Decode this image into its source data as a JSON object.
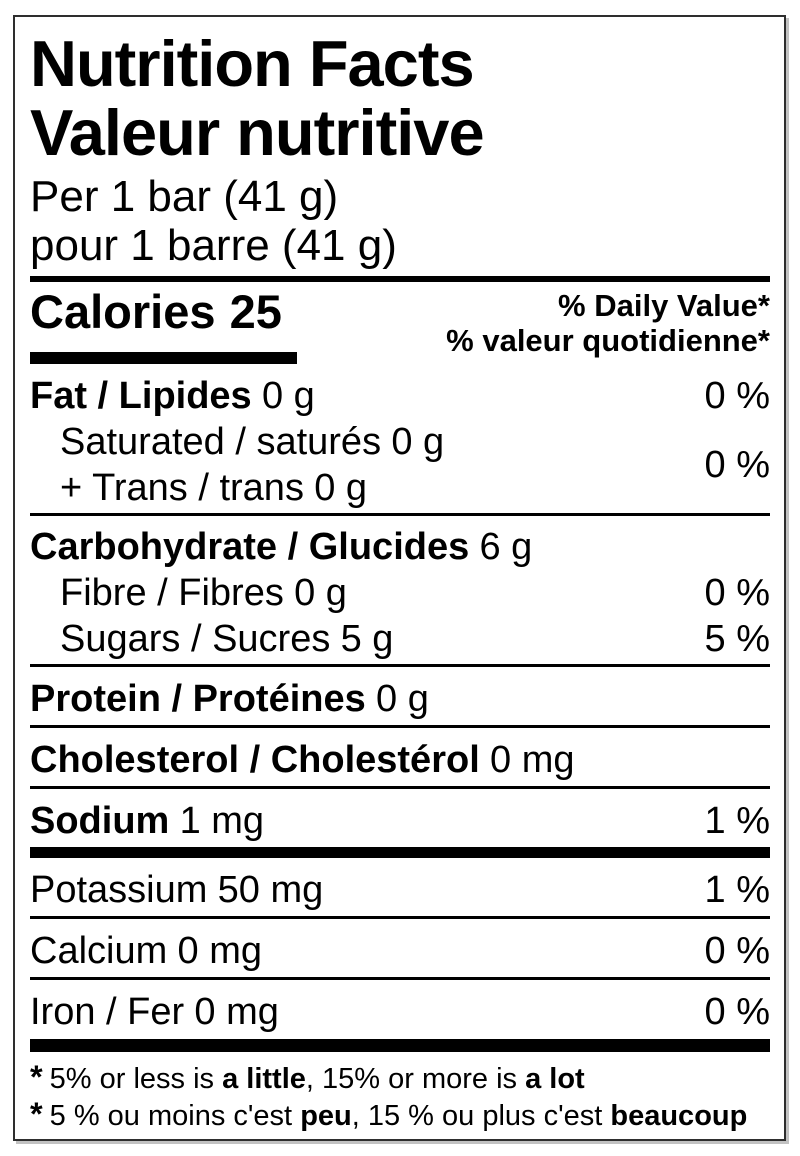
{
  "label": {
    "title_en": "Nutrition Facts",
    "title_fr": "Valeur nutritive",
    "serving_en": "Per 1 bar (41 g)",
    "serving_fr": "pour 1 barre (41 g)",
    "calories_label": "Calories",
    "calories_value": "25",
    "daily_value_header_en": "% Daily Value*",
    "daily_value_header_fr": "% valeur quotidienne*",
    "rows": [
      {
        "id": "fat",
        "label": "Fat / Lipides",
        "amount": "0 g",
        "dv": "0 %"
      },
      {
        "id": "saturated-trans",
        "dv": "0 %",
        "lines": [
          {
            "label": "Saturated / saturés",
            "amount": "0 g"
          },
          {
            "label": "+ Trans / trans",
            "amount": "0 g"
          }
        ]
      },
      {
        "id": "carbohydrate",
        "label": "Carbohydrate / Glucides",
        "amount": "6 g"
      },
      {
        "id": "fibre",
        "label": "Fibre / Fibres",
        "amount": "0 g",
        "dv": "0 %"
      },
      {
        "id": "sugars",
        "label": "Sugars / Sucres",
        "amount": "5 g",
        "dv": "5 %"
      },
      {
        "id": "protein",
        "label": "Protein / Protéines",
        "amount": "0 g"
      },
      {
        "id": "cholesterol",
        "label": "Cholesterol / Cholestérol",
        "amount": "0 mg"
      },
      {
        "id": "sodium",
        "label": "Sodium",
        "amount": "1 mg",
        "dv": "1 %"
      },
      {
        "id": "potassium",
        "label": "Potassium",
        "amount": "50 mg",
        "dv": "1 %"
      },
      {
        "id": "calcium",
        "label": "Calcium",
        "amount": "0 mg",
        "dv": "0 %"
      },
      {
        "id": "iron",
        "label": "Iron / Fer",
        "amount": "0 mg",
        "dv": "0 %"
      }
    ],
    "footnotes": {
      "en": {
        "star": "*",
        "segments": [
          "5% or less is ",
          "a little",
          ", 15% or more is ",
          "a lot"
        ]
      },
      "fr": {
        "star": "*",
        "segments": [
          "5 % ou moins c'est ",
          "peu",
          ", 15 % ou plus c'est ",
          "beaucoup"
        ]
      }
    },
    "colors": {
      "text": "#000000",
      "background": "#ffffff",
      "border": "#2e2e2e"
    }
  }
}
